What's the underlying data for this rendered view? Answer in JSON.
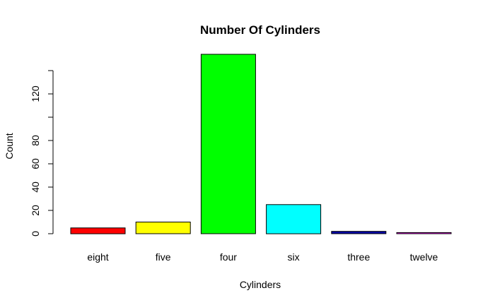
{
  "chart_data": {
    "type": "bar",
    "title": "Number Of Cylinders",
    "xlabel": "Cylinders",
    "ylabel": "Count",
    "categories": [
      "eight",
      "five",
      "four",
      "six",
      "three",
      "twelve"
    ],
    "values": [
      5,
      10,
      154,
      25,
      2,
      1
    ],
    "colors": [
      "#ff0000",
      "#ffff00",
      "#00ff00",
      "#00ffff",
      "#0000aa",
      "#ff00ff"
    ],
    "yticks": [
      0,
      20,
      40,
      60,
      80,
      100,
      120,
      140
    ],
    "ytick_labels": [
      "0",
      "20",
      "40",
      "60",
      "80",
      "",
      "120",
      ""
    ],
    "ylim": [
      0,
      160
    ],
    "grid": false,
    "legend": "none"
  }
}
